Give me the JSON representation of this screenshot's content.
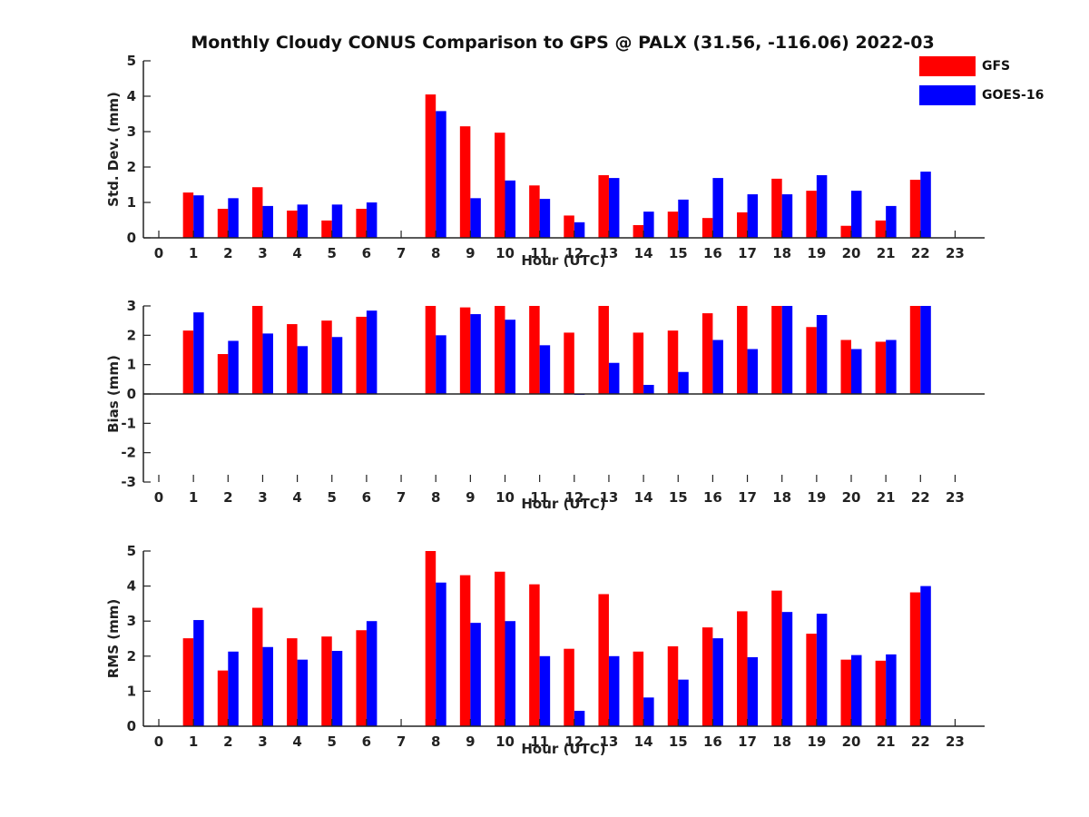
{
  "title": "Monthly Cloudy CONUS Comparison to GPS @ PALX (31.56, -116.06) 2022-03",
  "legend": {
    "items": [
      {
        "label": "GFS",
        "color": "#ff0000"
      },
      {
        "label": "GOES-16",
        "color": "#0000ff"
      }
    ]
  },
  "chart_data": [
    {
      "type": "bar",
      "title": "",
      "xlabel": "Hour (UTC)",
      "ylabel": "Std. Dev. (mm)",
      "categories": [
        "0",
        "1",
        "2",
        "3",
        "4",
        "5",
        "6",
        "7",
        "8",
        "9",
        "10",
        "11",
        "12",
        "13",
        "14",
        "15",
        "16",
        "17",
        "18",
        "19",
        "20",
        "21",
        "22",
        "23"
      ],
      "ylim": [
        0,
        5
      ],
      "yticks": [
        "0",
        "1",
        "2",
        "3",
        "4",
        "5"
      ],
      "series": [
        {
          "name": "GFS",
          "color": "#ff0000",
          "values": [
            null,
            1.28,
            0.82,
            1.43,
            0.77,
            0.49,
            0.82,
            null,
            4.05,
            3.15,
            2.97,
            1.48,
            0.63,
            1.77,
            0.36,
            0.74,
            0.56,
            0.72,
            1.67,
            1.33,
            0.34,
            0.49,
            1.64,
            null
          ]
        },
        {
          "name": "GOES-16",
          "color": "#0000ff",
          "values": [
            null,
            1.2,
            1.12,
            0.9,
            0.94,
            0.94,
            1.0,
            null,
            3.58,
            1.12,
            1.62,
            1.1,
            0.44,
            1.69,
            0.74,
            1.08,
            1.69,
            1.23,
            1.23,
            1.77,
            1.33,
            0.9,
            1.87,
            null
          ]
        }
      ]
    },
    {
      "type": "bar",
      "title": "",
      "xlabel": "Hour (UTC)",
      "ylabel": "Bias (mm)",
      "categories": [
        "0",
        "1",
        "2",
        "3",
        "4",
        "5",
        "6",
        "7",
        "8",
        "9",
        "10",
        "11",
        "12",
        "13",
        "14",
        "15",
        "16",
        "17",
        "18",
        "19",
        "20",
        "21",
        "22",
        "23"
      ],
      "ylim": [
        -3,
        3
      ],
      "yticks": [
        "-3",
        "-2",
        "-1",
        "0",
        "1",
        "2",
        "3"
      ],
      "series": [
        {
          "name": "GFS",
          "color": "#ff0000",
          "values": [
            null,
            2.16,
            1.36,
            3.0,
            2.38,
            2.5,
            2.63,
            null,
            3.0,
            2.95,
            3.0,
            3.0,
            2.09,
            3.0,
            2.09,
            2.16,
            2.75,
            3.0,
            3.0,
            2.28,
            1.84,
            1.78,
            3.0,
            null
          ]
        },
        {
          "name": "GOES-16",
          "color": "#0000ff",
          "values": [
            null,
            2.78,
            1.81,
            2.06,
            1.63,
            1.94,
            2.84,
            null,
            2.0,
            2.72,
            2.53,
            1.66,
            -0.03,
            1.06,
            0.31,
            0.75,
            1.84,
            1.53,
            3.0,
            2.69,
            1.53,
            1.84,
            3.0,
            null
          ]
        }
      ]
    },
    {
      "type": "bar",
      "title": "",
      "xlabel": "Hour (UTC)",
      "ylabel": "RMS (mm)",
      "categories": [
        "0",
        "1",
        "2",
        "3",
        "4",
        "5",
        "6",
        "7",
        "8",
        "9",
        "10",
        "11",
        "12",
        "13",
        "14",
        "15",
        "16",
        "17",
        "18",
        "19",
        "20",
        "21",
        "22",
        "23"
      ],
      "ylim": [
        0,
        5
      ],
      "yticks": [
        "0",
        "1",
        "2",
        "3",
        "4",
        "5"
      ],
      "series": [
        {
          "name": "GFS",
          "color": "#ff0000",
          "values": [
            null,
            2.51,
            1.59,
            3.38,
            2.51,
            2.56,
            2.74,
            null,
            5.0,
            4.31,
            4.41,
            4.05,
            2.21,
            3.77,
            2.13,
            2.28,
            2.82,
            3.28,
            3.87,
            2.64,
            1.9,
            1.87,
            3.82,
            null
          ]
        },
        {
          "name": "GOES-16",
          "color": "#0000ff",
          "values": [
            null,
            3.03,
            2.13,
            2.26,
            1.9,
            2.15,
            3.0,
            null,
            4.1,
            2.95,
            3.0,
            2.0,
            0.44,
            2.0,
            0.82,
            1.33,
            2.51,
            1.97,
            3.26,
            3.21,
            2.03,
            2.05,
            4.0,
            null
          ]
        }
      ]
    }
  ]
}
